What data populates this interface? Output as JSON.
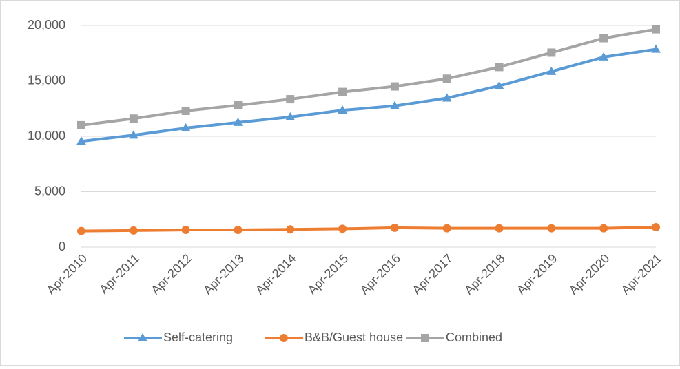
{
  "chart_data": {
    "type": "line",
    "categories": [
      "Apr-2010",
      "Apr-2011",
      "Apr-2012",
      "Apr-2013",
      "Apr-2014",
      "Apr-2015",
      "Apr-2016",
      "Apr-2017",
      "Apr-2018",
      "Apr-2019",
      "Apr-2020",
      "Apr-2021"
    ],
    "series": [
      {
        "name": "Self-catering",
        "color": "#5b9bd5",
        "marker": "triangle",
        "values": [
          9550,
          10100,
          10750,
          11250,
          11750,
          12350,
          12750,
          13450,
          14550,
          15850,
          17150,
          17850
        ]
      },
      {
        "name": "B&B/Guest house",
        "color": "#ed7d31",
        "marker": "circle",
        "values": [
          1450,
          1500,
          1550,
          1550,
          1600,
          1650,
          1750,
          1700,
          1700,
          1700,
          1700,
          1800
        ]
      },
      {
        "name": "Combined",
        "color": "#a5a5a5",
        "marker": "square",
        "values": [
          11000,
          11600,
          12300,
          12800,
          13350,
          14000,
          14500,
          15200,
          16250,
          17550,
          18850,
          19650
        ]
      }
    ],
    "ylim": [
      0,
      20000
    ],
    "yticks": [
      0,
      {
        "value": 5000,
        "label": "5,000"
      },
      {
        "value": 10000,
        "label": "10,000"
      },
      {
        "value": 15000,
        "label": "15,000"
      },
      {
        "value": 20000,
        "label": "20,000"
      }
    ],
    "grid": true,
    "legend": "bottom"
  }
}
